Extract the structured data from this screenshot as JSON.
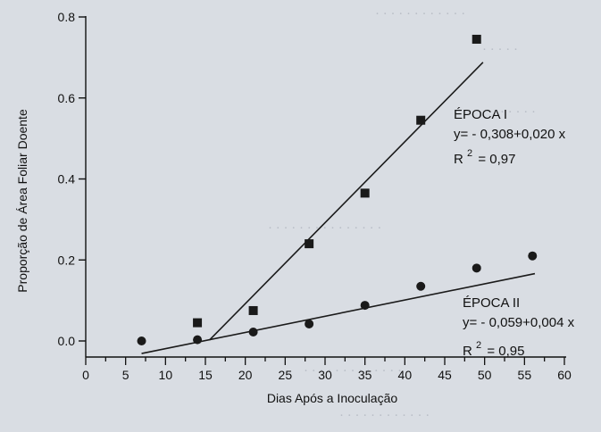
{
  "chart_data": {
    "type": "scatter",
    "title": "",
    "xlabel": "Dias Após a Inoculação",
    "ylabel": "Proporção de Área Foliar Doente",
    "xlim": [
      0,
      60
    ],
    "ylim": [
      -0.04,
      0.8
    ],
    "x_ticks": [
      0,
      5,
      10,
      15,
      20,
      25,
      30,
      35,
      40,
      45,
      50,
      55,
      60
    ],
    "x_tick_labels": [
      "0",
      "5",
      "10",
      "15",
      "20",
      "25",
      "30",
      "35",
      "40",
      "45",
      "50",
      "55",
      "60"
    ],
    "y_ticks": [
      0.0,
      0.2,
      0.4,
      0.6,
      0.8
    ],
    "y_tick_labels": [
      "0.0",
      "0.2",
      "0.4",
      "0.6",
      "0.8"
    ],
    "grid": false,
    "series": [
      {
        "name": "ÉPOCA I",
        "marker": "square",
        "x": [
          14,
          21,
          28,
          35,
          42,
          49
        ],
        "y": [
          0.045,
          0.075,
          0.24,
          0.365,
          0.545,
          0.745
        ],
        "fit": {
          "intercept": -0.308,
          "slope": 0.02,
          "x_range": [
            14,
            49
          ]
        },
        "annotation": {
          "label": "ÉPOCA I",
          "equation": "y= - 0,308+0,020 x",
          "r2_prefix": "R",
          "r2_sup": "2",
          "r2_value": "= 0,97"
        }
      },
      {
        "name": "ÉPOCA II",
        "marker": "circle",
        "x": [
          7,
          14,
          21,
          28,
          35,
          42,
          49,
          56
        ],
        "y": [
          0.0,
          0.003,
          0.022,
          0.042,
          0.088,
          0.135,
          0.18,
          0.21
        ],
        "fit": {
          "intercept": -0.059,
          "slope": 0.004,
          "x_range": [
            7,
            56
          ]
        },
        "annotation": {
          "label": "ÉPOCA II",
          "equation": "y= - 0,059+0,004 x",
          "r2_prefix": "R",
          "r2_sup": "2",
          "r2_value": "= 0,95"
        }
      }
    ],
    "colors": {
      "marks": "#1a1a1a",
      "background": "#d9dde3"
    }
  }
}
